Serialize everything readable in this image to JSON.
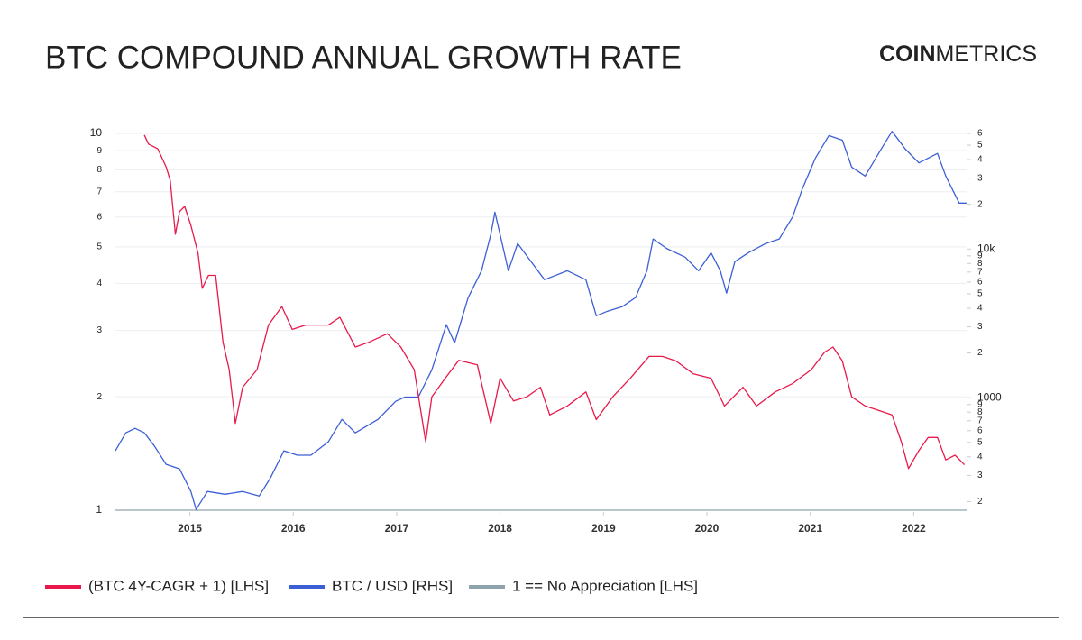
{
  "chart_data": {
    "type": "line",
    "title": "BTC COMPOUND ANNUAL GROWTH RATE",
    "logo": [
      "COIN",
      "METRICS"
    ],
    "xlim": [
      2014.28,
      2022.52
    ],
    "xticks": [
      2015,
      2016,
      2017,
      2018,
      2019,
      2020,
      2021,
      2022
    ],
    "ylim": [
      1,
      10
    ],
    "yscale": "log",
    "yticks": [
      1,
      2,
      3,
      4,
      5,
      6,
      7,
      8,
      9,
      10
    ],
    "y2lim": [
      175,
      60000
    ],
    "y2scale": "log",
    "y2ticks": [
      {
        "value": 200,
        "label": "2"
      },
      {
        "value": 300,
        "label": "3"
      },
      {
        "value": 400,
        "label": "4"
      },
      {
        "value": 500,
        "label": "5"
      },
      {
        "value": 600,
        "label": "6"
      },
      {
        "value": 700,
        "label": "7"
      },
      {
        "value": 800,
        "label": "8"
      },
      {
        "value": 900,
        "label": "9"
      },
      1000,
      {
        "value": 2000,
        "label": "2"
      },
      {
        "value": 3000,
        "label": "3"
      },
      {
        "value": 4000,
        "label": "4"
      },
      {
        "value": 5000,
        "label": "5"
      },
      {
        "value": 6000,
        "label": "6"
      },
      {
        "value": 7000,
        "label": "7"
      },
      {
        "value": 8000,
        "label": "8"
      },
      {
        "value": 9000,
        "label": "9"
      },
      {
        "value": 10000,
        "label": "10k"
      },
      {
        "value": 20000,
        "label": "2"
      },
      {
        "value": 30000,
        "label": "3"
      },
      {
        "value": 40000,
        "label": "4"
      },
      {
        "value": 50000,
        "label": "5"
      },
      {
        "value": 60000,
        "label": "6"
      }
    ],
    "grid": true,
    "legend": "bottom",
    "series": [
      {
        "name": "(BTC 4Y-CAGR + 1) [LHS]",
        "color": "#e8194a",
        "axis": "y",
        "x": [
          2014.56,
          2014.6,
          2014.69,
          2014.77,
          2014.81,
          2014.86,
          2014.9,
          2014.95,
          2015.01,
          2015.08,
          2015.12,
          2015.18,
          2015.25,
          2015.32,
          2015.38,
          2015.44,
          2015.51,
          2015.65,
          2015.76,
          2015.89,
          2015.99,
          2016.12,
          2016.34,
          2016.45,
          2016.6,
          2016.73,
          2016.91,
          2017.04,
          2017.17,
          2017.28,
          2017.34,
          2017.47,
          2017.6,
          2017.78,
          2017.91,
          2018.0,
          2018.13,
          2018.26,
          2018.39,
          2018.48,
          2018.65,
          2018.83,
          2018.93,
          2019.09,
          2019.26,
          2019.44,
          2019.57,
          2019.7,
          2019.87,
          2020.04,
          2020.17,
          2020.35,
          2020.48,
          2020.66,
          2020.83,
          2021.01,
          2021.14,
          2021.22,
          2021.31,
          2021.4,
          2021.53,
          2021.66,
          2021.79,
          2021.88,
          2021.95,
          2022.05,
          2022.14,
          2022.23,
          2022.31,
          2022.4,
          2022.49
        ],
        "values": [
          9.9,
          9.37,
          9.1,
          8.15,
          7.5,
          5.4,
          6.2,
          6.4,
          5.7,
          4.8,
          3.88,
          4.2,
          4.2,
          2.79,
          2.36,
          1.7,
          2.12,
          2.36,
          3.1,
          3.47,
          3.02,
          3.1,
          3.1,
          3.25,
          2.71,
          2.79,
          2.94,
          2.71,
          2.36,
          1.52,
          2.0,
          2.24,
          2.5,
          2.43,
          1.7,
          2.24,
          1.95,
          2.0,
          2.12,
          1.79,
          1.89,
          2.06,
          1.74,
          2.0,
          2.24,
          2.56,
          2.56,
          2.49,
          2.3,
          2.24,
          1.89,
          2.12,
          1.89,
          2.06,
          2.17,
          2.36,
          2.63,
          2.71,
          2.49,
          2.0,
          1.89,
          1.84,
          1.79,
          1.52,
          1.29,
          1.44,
          1.56,
          1.56,
          1.36,
          1.4,
          1.32
        ]
      },
      {
        "name": "BTC / USD [RHS]",
        "color": "#3d5fd6",
        "axis": "y2",
        "x": [
          2014.28,
          2014.38,
          2014.47,
          2014.56,
          2014.66,
          2014.77,
          2014.9,
          2015.01,
          2015.06,
          2015.17,
          2015.34,
          2015.51,
          2015.67,
          2015.78,
          2015.91,
          2016.04,
          2016.17,
          2016.34,
          2016.47,
          2016.6,
          2016.82,
          2016.99,
          2017.08,
          2017.21,
          2017.34,
          2017.48,
          2017.56,
          2017.69,
          2017.82,
          2017.91,
          2017.95,
          2018.02,
          2018.08,
          2018.17,
          2018.3,
          2018.43,
          2018.65,
          2018.83,
          2018.93,
          2019.04,
          2019.18,
          2019.31,
          2019.42,
          2019.48,
          2019.61,
          2019.79,
          2019.92,
          2020.04,
          2020.13,
          2020.19,
          2020.27,
          2020.4,
          2020.57,
          2020.7,
          2020.83,
          2020.92,
          2021.05,
          2021.18,
          2021.31,
          2021.4,
          2021.53,
          2021.66,
          2021.79,
          2021.92,
          2022.05,
          2022.23,
          2022.31,
          2022.44,
          2022.51
        ],
        "values": [
          439,
          580,
          622,
          580,
          470,
          356,
          332,
          234,
          177,
          234,
          224,
          234,
          218,
          289,
          439,
          410,
          410,
          505,
          715,
          580,
          715,
          946,
          1010,
          1010,
          1540,
          3100,
          2340,
          4700,
          7140,
          12500,
          17700,
          10900,
          7140,
          10900,
          8220,
          6220,
          7140,
          6220,
          3560,
          3820,
          4090,
          4720,
          7140,
          11700,
          10100,
          8820,
          7140,
          9450,
          7140,
          5050,
          8220,
          9450,
          10900,
          11700,
          16500,
          25100,
          41000,
          58000,
          54000,
          35600,
          31000,
          44000,
          62000,
          47000,
          38000,
          44000,
          31000,
          20400,
          20400
        ]
      },
      {
        "name": "1 ==  No Appreciation [LHS]",
        "color": "#8fa3ad",
        "axis": "y",
        "x": [
          2014.28,
          2022.52
        ],
        "values": [
          1,
          1
        ]
      }
    ]
  }
}
